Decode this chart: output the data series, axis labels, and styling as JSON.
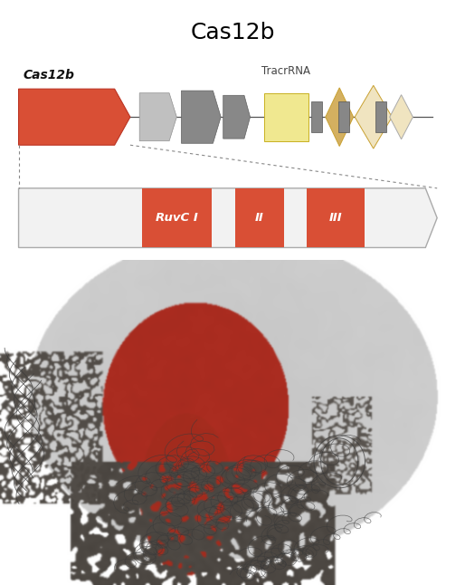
{
  "title": "Cas12b",
  "title_fontsize": 18,
  "background_color": "#ffffff",
  "gene_label": "Cas12b",
  "tracr_label": "TracrRNA",
  "red_color": "#d94f35",
  "gray_light": "#c8c8c8",
  "gray_mid": "#909090",
  "gray_dark": "#707070",
  "yellow_color": "#f0e890",
  "diamond1_color": "#dfc97a",
  "diamond2_color": "#f0e4c0",
  "domain_bg": "#f0f0f0",
  "domain_edge": "#aaaaaa",
  "font_color": "#333333",
  "white": "#ffffff"
}
